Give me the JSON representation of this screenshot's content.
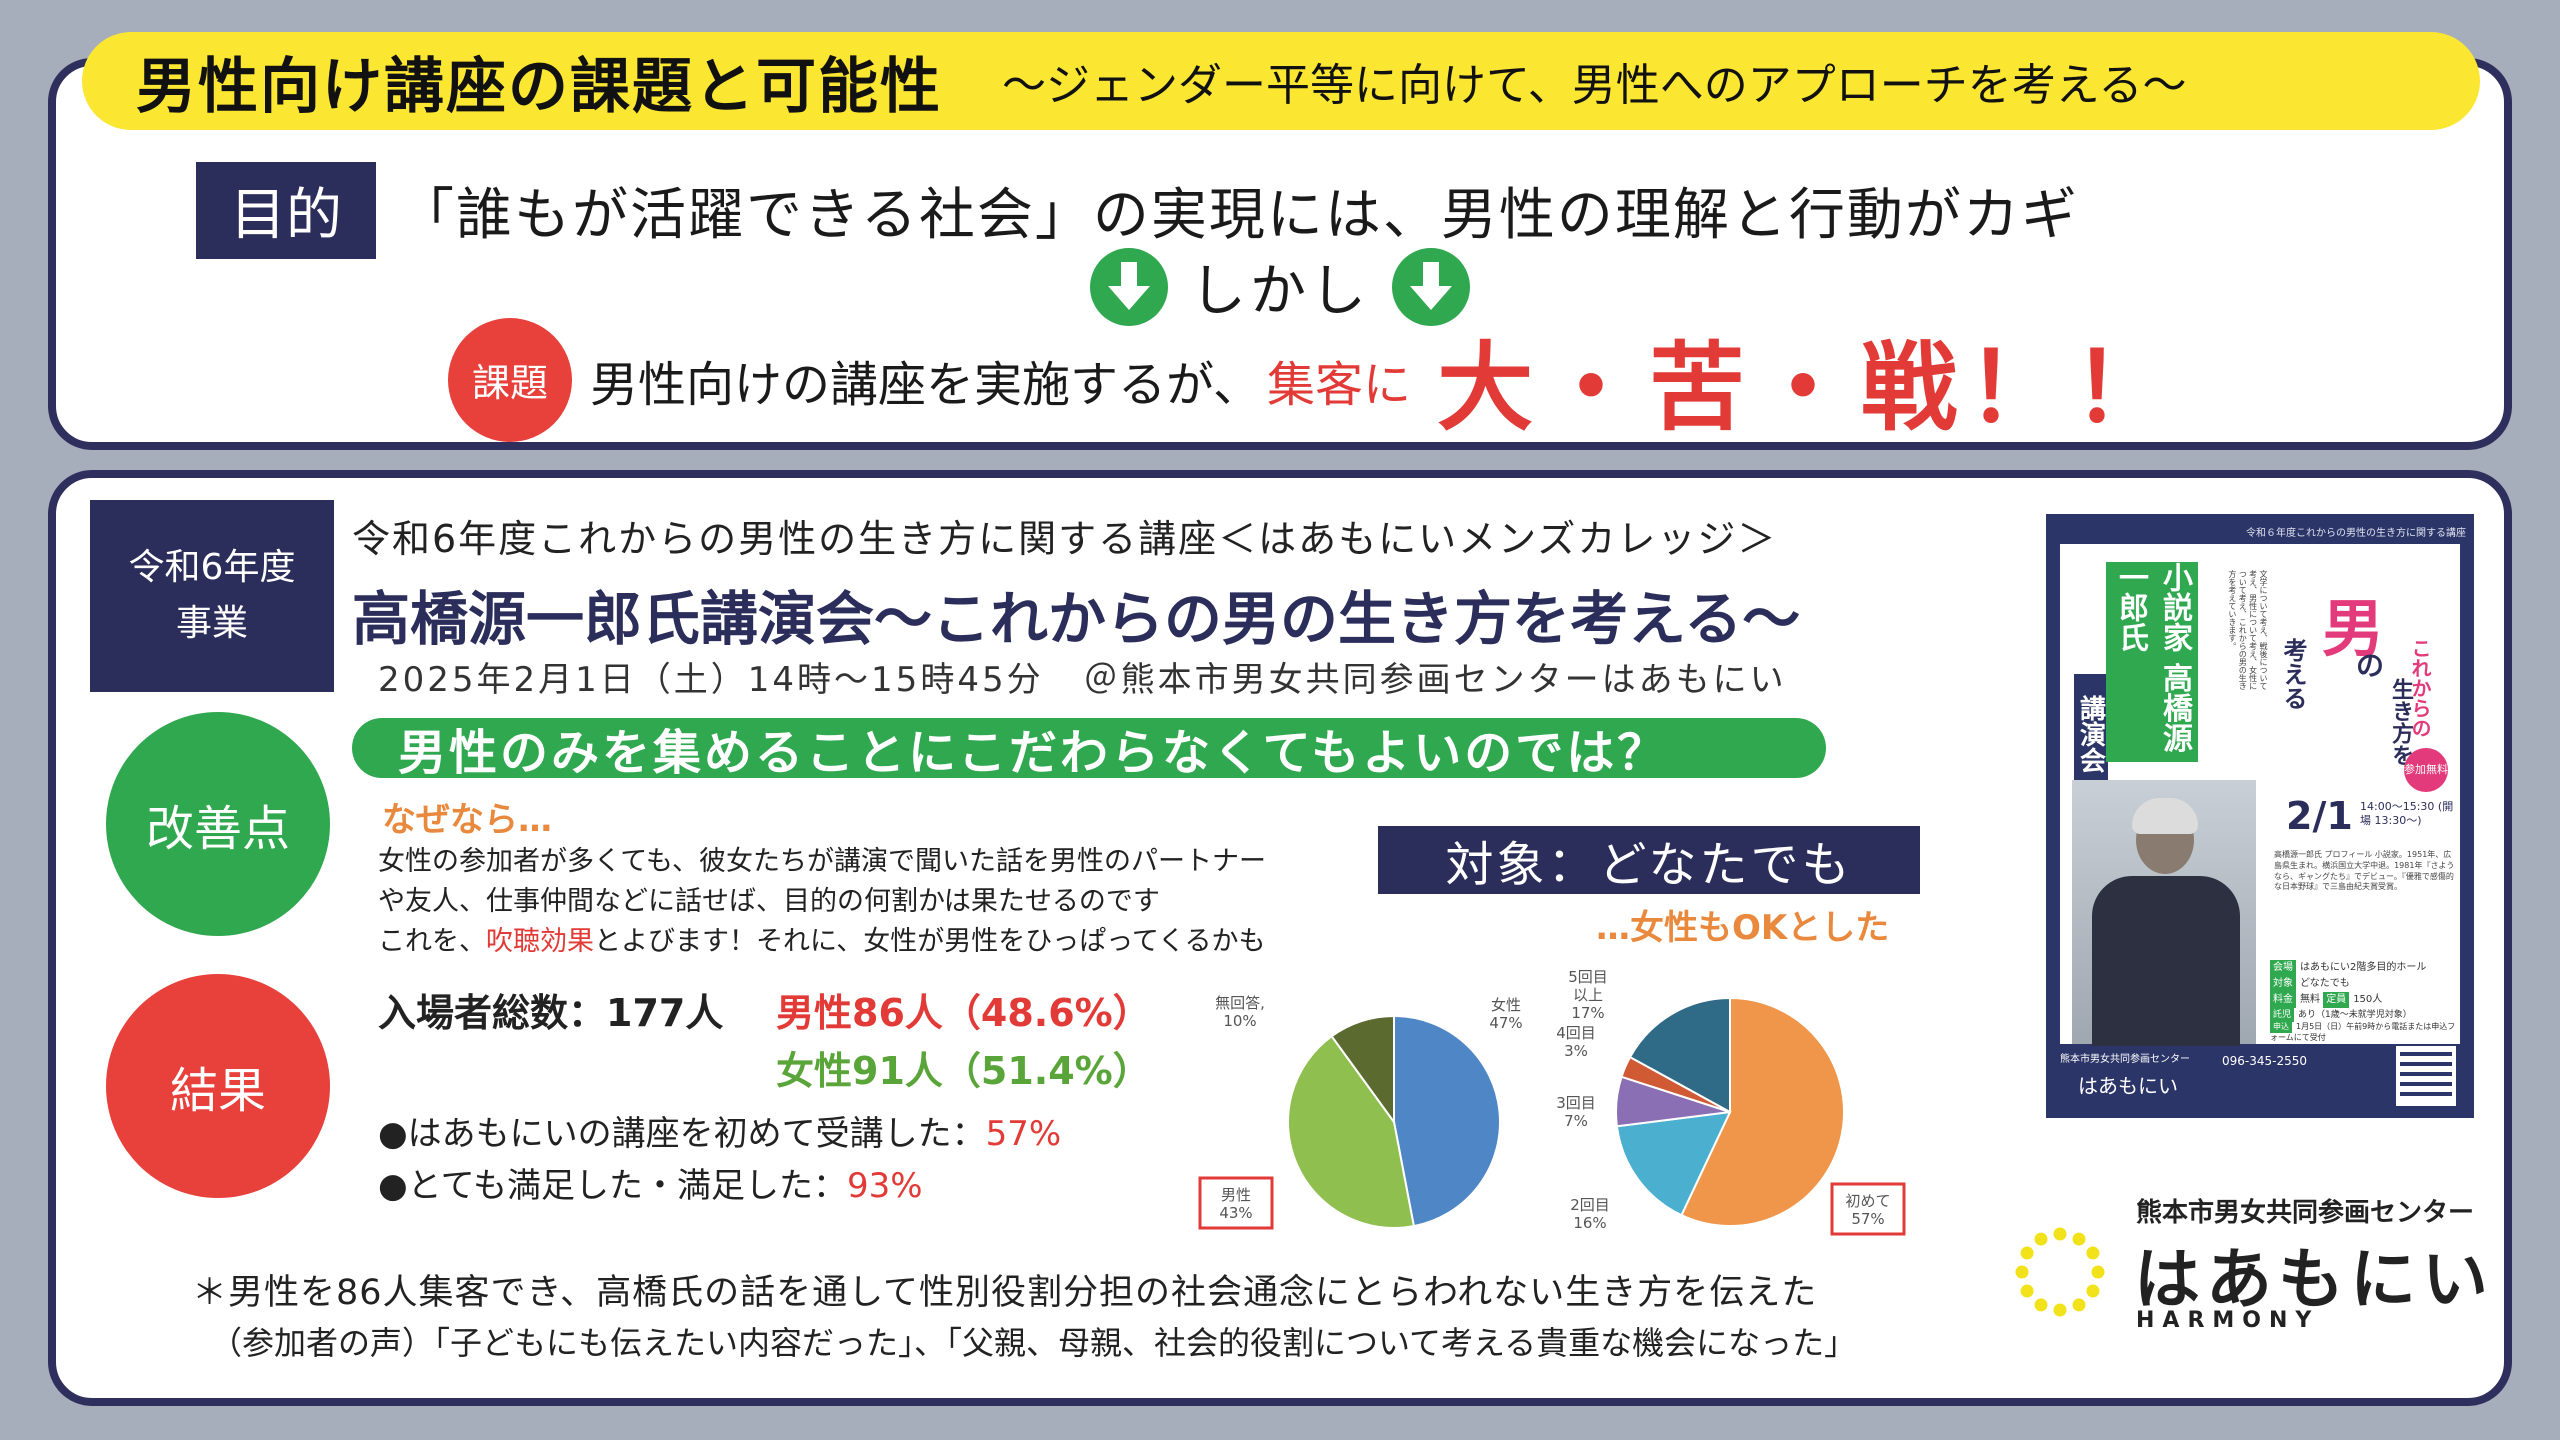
{
  "header": {
    "title": "男性向け講座の課題と可能性",
    "subtitle": "～ジェンダー平等に向けて、男性へのアプローチを考える～"
  },
  "purpose": {
    "label": "目的",
    "text": "「誰もが活躍できる社会」の実現には、男性の理解と行動がカギ"
  },
  "however": {
    "text": "しかし"
  },
  "issue": {
    "label": "課題",
    "text": "男性向けの講座を実施するが、",
    "red": "集客に",
    "big": "大・苦・戦！！"
  },
  "project": {
    "label_line1": "令和6年度",
    "label_line2": "事業",
    "series": "令和6年度これからの男性の生き方に関する講座＜はあもにいメンズカレッジ＞",
    "title": "高橋源一郎氏講演会～これからの男の生き方を考える～",
    "date": "2025年2月1日（土）14時～15時45分",
    "venue": "＠熊本市男女共同参画センターはあもにい"
  },
  "improvement": {
    "label": "改善点",
    "banner": "男性のみを集めることにこだわらなくてもよいのでは？",
    "because": "なぜなら…",
    "reason_line1": "女性の参加者が多くても、彼女たちが講演で聞いた話を男性のパートナー",
    "reason_line2": "や友人、仕事仲間などに話せば、目的の何割かは果たせるのです",
    "reason_line3_pre": "これを、",
    "reason_line3_red": "吹聴効果",
    "reason_line3_post": "とよびます！それに、女性が男性をひっぱってくるかも",
    "target": "対象：どなたでも",
    "target_note": "…女性もOKとした"
  },
  "result": {
    "label": "結果",
    "total": "入場者総数：177人",
    "male": "男性86人（48.6%）",
    "female": "女性91人（51.4%）",
    "first_time_pre": "●はあもにいの講座を初めて受講した：",
    "first_time_val": "57%",
    "satisfied_pre": "●とても満足した・満足した：",
    "satisfied_val": "93%"
  },
  "chart_data": [
    {
      "type": "pie",
      "title": "",
      "categories": [
        "女性",
        "男性",
        "無回答"
      ],
      "values": [
        47,
        43,
        10
      ],
      "labels": [
        "女性\n47%",
        "男性\n43%",
        "無回答,\n10%"
      ],
      "colors": [
        "#4f86c6",
        "#8fbf4f",
        "#5b6b2f"
      ]
    },
    {
      "type": "pie",
      "title": "",
      "categories": [
        "初めて",
        "2回目",
        "3回目",
        "4回目",
        "5回目以上"
      ],
      "values": [
        57,
        16,
        7,
        3,
        17
      ],
      "labels": [
        "初めて\n57%",
        "2回目\n16%",
        "3回目\n7%",
        "4回目\n3%",
        "5回目\n以上\n17%"
      ],
      "colors": [
        "#f0964a",
        "#4bb0d0",
        "#8a6fb4",
        "#d05a34",
        "#2f6a86"
      ]
    }
  ],
  "footer": {
    "main": "＊男性を86人集客でき、高橋氏の話を通して性別役割分担の社会通念にとらわれない生き方を伝えた",
    "voice": "（参加者の声）「子どもにも伝えたい内容だった」、「父親、母親、社会的役割について考える貴重な機会になった」"
  },
  "flyer": {
    "topline": "令和６年度これからの男性の生き方に関する講座",
    "badge": "小説家 高橋源一郎氏",
    "kouen": "講演会",
    "smalltext": "文学について考え、戦後について考え、男性について考え、女性について考え、これからの男の生き方を考えていきます。",
    "h_korekara": "これからの",
    "h_otoko": "男",
    "h_no": "の",
    "h_ikikata": "生き方を",
    "h_kangaeru": "考える",
    "date": "2/1",
    "time": "14:00～15:30 (開場 13:30～)",
    "free": "参加無料",
    "profile": "高橋源一郎氏 プロフィール 小説家。1951年、広島県生まれ。横浜国立大学中退。1981年『さようなら、ギャングたち』でデビュー。『優雅で感傷的な日本野球』で三島由紀夫賞受賞。",
    "info_venue_k": "会場",
    "info_venue_v": "はあもにい2階多目的ホール",
    "info_target_k": "対象",
    "info_target_v": "どなたでも",
    "info_fee_k": "料金",
    "info_fee_v": "無料",
    "info_cap_k": "定員",
    "info_cap_v": "150人",
    "info_care_k": "託児",
    "info_care_v": "あり（1歳～未就学児対象）",
    "info_apply_k": "申込",
    "info_apply_v": "1月5日（日）午前9時から電話または申込フォームにて受付",
    "bottom_center": "熊本市男女共同参画センター",
    "bottom_logo": "はあもにい",
    "phone": "096-345-2550"
  },
  "logo": {
    "center_name": "熊本市男女共同参画センター",
    "text": "はあもにい",
    "sub": "HARMONY",
    "dot_color": "#f2e21a"
  }
}
